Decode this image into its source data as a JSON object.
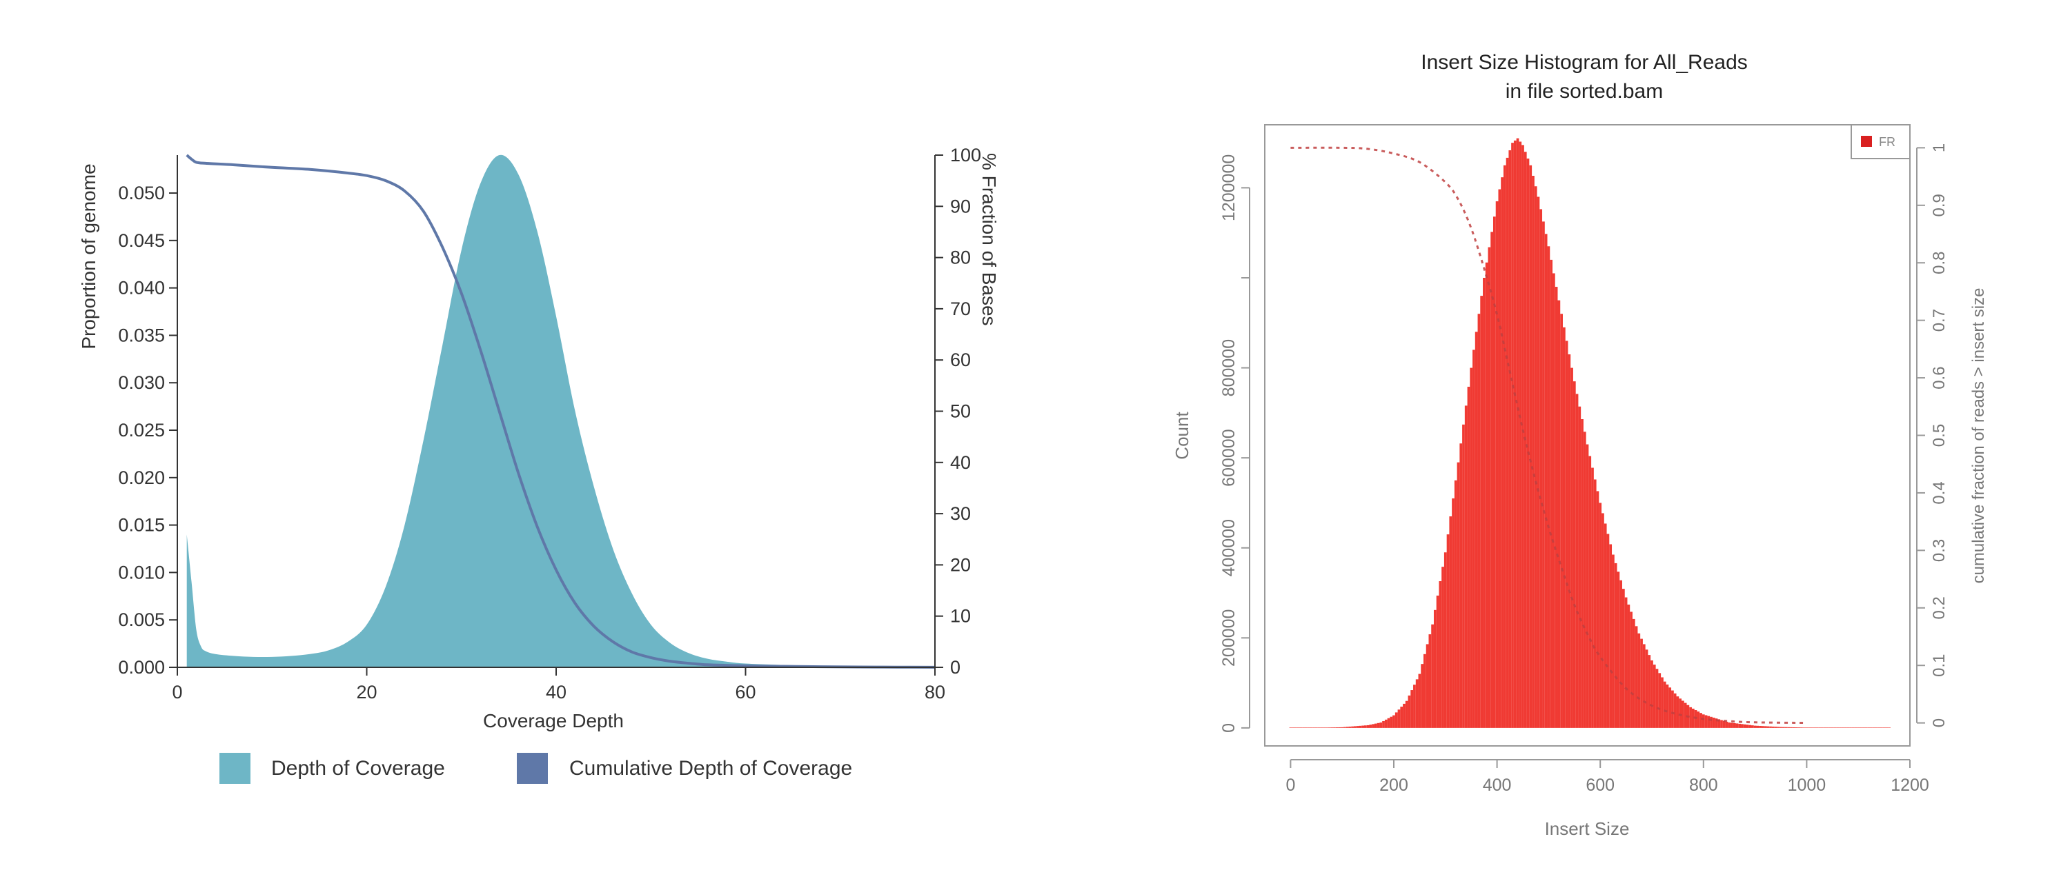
{
  "chart_data": [
    {
      "type": "area",
      "xlabel": "Coverage Depth",
      "ylabel": "Proportion of genome",
      "y2label": "% Fraction of Bases",
      "xlim": [
        0,
        80
      ],
      "ylim": [
        0,
        0.054
      ],
      "y2lim": [
        0,
        100
      ],
      "x_ticks": [
        "0",
        "20",
        "40",
        "60",
        "80"
      ],
      "y_ticks": [
        "0.000",
        "0.005",
        "0.010",
        "0.015",
        "0.020",
        "0.025",
        "0.030",
        "0.035",
        "0.040",
        "0.045",
        "0.050"
      ],
      "y2_ticks": [
        "0",
        "10",
        "20",
        "30",
        "40",
        "50",
        "60",
        "70",
        "80",
        "90",
        "100"
      ],
      "grid": false,
      "legend_position": "bottom",
      "colors": {
        "depth": "#6eb6c6",
        "cumulative": "#5f78a8"
      },
      "series": [
        {
          "name": "Depth of Coverage",
          "axis": "left",
          "x": [
            1,
            1.5,
            2,
            2.5,
            3,
            4,
            6,
            8,
            10,
            12,
            14,
            16,
            18,
            20,
            22,
            24,
            26,
            28,
            30,
            32,
            34,
            36,
            38,
            40,
            42,
            44,
            46,
            48,
            50,
            52,
            54,
            56,
            58,
            60,
            64,
            68,
            72,
            76,
            80
          ],
          "values": [
            0.014,
            0.009,
            0.004,
            0.0022,
            0.0017,
            0.0014,
            0.0012,
            0.0011,
            0.0011,
            0.0012,
            0.0014,
            0.0018,
            0.0027,
            0.0045,
            0.0085,
            0.015,
            0.024,
            0.034,
            0.044,
            0.051,
            0.054,
            0.052,
            0.046,
            0.037,
            0.027,
            0.019,
            0.0125,
            0.0078,
            0.0045,
            0.0026,
            0.0015,
            0.0009,
            0.0006,
            0.0004,
            0.00025,
            0.00015,
            0.0001,
            6e-05,
            3e-05
          ]
        },
        {
          "name": "Cumulative Depth of Coverage",
          "axis": "right",
          "x": [
            1,
            1.5,
            2,
            3,
            6,
            10,
            14,
            18,
            20,
            22,
            24,
            26,
            28,
            30,
            32,
            34,
            36,
            38,
            40,
            42,
            44,
            46,
            48,
            50,
            52,
            54,
            56,
            60,
            64,
            68,
            72,
            76,
            80
          ],
          "values": [
            100,
            99.2,
            98.6,
            98.4,
            98.1,
            97.6,
            97.2,
            96.5,
            96,
            95,
            93,
            89,
            82,
            73,
            62,
            50,
            38,
            27.5,
            19,
            12.5,
            8,
            5,
            3,
            1.9,
            1.2,
            0.8,
            0.5,
            0.3,
            0.2,
            0.12,
            0.07,
            0.04,
            0.02
          ]
        }
      ]
    },
    {
      "type": "bar",
      "title": "Insert Size Histogram for All_Reads",
      "subtitle": "in file sorted.bam",
      "xlabel": "Insert Size",
      "ylabel": "Count",
      "y2label": "cumulative fraction of reads > insert size",
      "xlim": [
        -50,
        1200
      ],
      "ylim": [
        -40000,
        1340000
      ],
      "y2lim": [
        -0.04,
        1.04
      ],
      "x_ticks": [
        "0",
        "200",
        "400",
        "600",
        "800",
        "1000",
        "1200"
      ],
      "y_ticks": [
        "0",
        "200000",
        "400000",
        "600000",
        "800000",
        "1200000"
      ],
      "y2_ticks": [
        "0",
        "0.1",
        "0.2",
        "0.3",
        "0.4",
        "0.5",
        "0.6",
        "0.7",
        "0.8",
        "0.9",
        "1"
      ],
      "legend": [
        "FR"
      ],
      "legend_position": "top-right",
      "colors": {
        "bars": "#f03a33",
        "cumulative": "#c04040",
        "frame": "#999999"
      },
      "series": [
        {
          "name": "FR",
          "axis": "left",
          "x": [
            0,
            50,
            100,
            150,
            175,
            200,
            225,
            250,
            275,
            300,
            325,
            350,
            375,
            400,
            415,
            430,
            440,
            450,
            465,
            480,
            500,
            525,
            550,
            575,
            600,
            625,
            650,
            675,
            700,
            725,
            750,
            775,
            800,
            850,
            900,
            950,
            1000,
            1050,
            1100,
            1160
          ],
          "values": [
            0,
            500,
            1500,
            6000,
            12000,
            28000,
            60000,
            120000,
            230000,
            390000,
            590000,
            800000,
            1000000,
            1170000,
            1250000,
            1300000,
            1310000,
            1295000,
            1250000,
            1180000,
            1070000,
            920000,
            770000,
            630000,
            500000,
            385000,
            290000,
            210000,
            150000,
            103000,
            70000,
            46000,
            30000,
            12000,
            5000,
            2000,
            800,
            300,
            100,
            0
          ]
        },
        {
          "name": "cumulative fraction of reads > insert size",
          "axis": "right",
          "x": [
            0,
            100,
            150,
            200,
            250,
            300,
            325,
            350,
            375,
            400,
            425,
            450,
            475,
            500,
            525,
            550,
            575,
            600,
            650,
            700,
            750,
            800,
            850,
            900,
            1000
          ],
          "values": [
            1,
            1,
            0.998,
            0.99,
            0.975,
            0.94,
            0.91,
            0.86,
            0.79,
            0.71,
            0.61,
            0.51,
            0.42,
            0.34,
            0.27,
            0.205,
            0.155,
            0.115,
            0.06,
            0.03,
            0.015,
            0.007,
            0.003,
            0.001,
            0
          ]
        }
      ]
    }
  ]
}
